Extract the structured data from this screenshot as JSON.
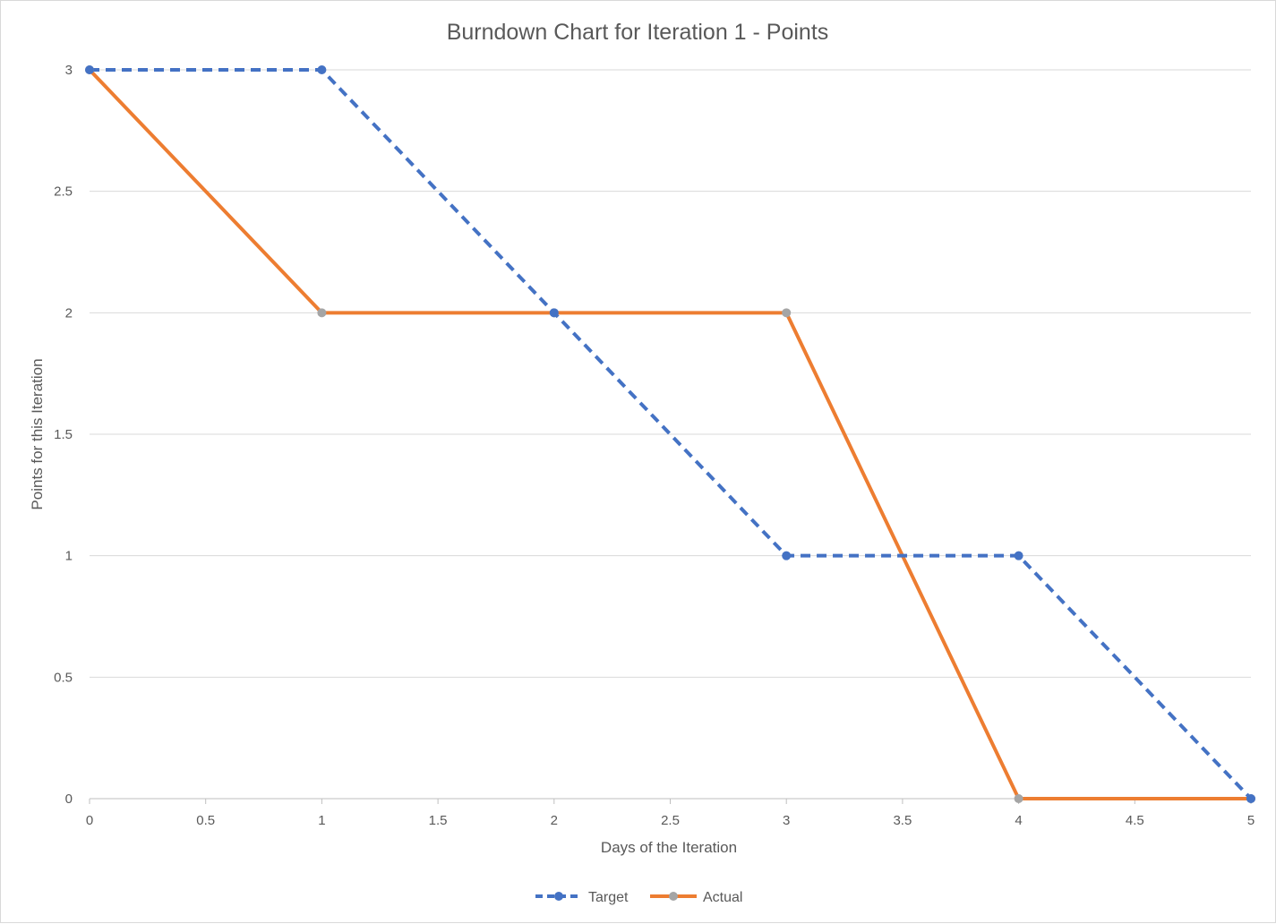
{
  "chart_data": {
    "type": "line",
    "title": "Burndown Chart for Iteration 1 - Points",
    "xlabel": "Days of the Iteration",
    "ylabel": "Points for this Iteration",
    "xlim": [
      0,
      5
    ],
    "ylim": [
      0,
      3
    ],
    "x_ticks": [
      "0",
      "0.5",
      "1",
      "1.5",
      "2",
      "2.5",
      "3",
      "3.5",
      "4",
      "4.5",
      "5"
    ],
    "y_ticks": [
      "0",
      "0.5",
      "1",
      "1.5",
      "2",
      "2.5",
      "3"
    ],
    "grid": true,
    "legend_position": "bottom",
    "series": [
      {
        "name": "Target",
        "color": "#4472c4",
        "marker_color": "#4472c4",
        "line_style": "dashed",
        "points": [
          [
            0,
            3
          ],
          [
            1,
            3
          ],
          [
            2,
            2
          ],
          [
            3,
            1
          ],
          [
            4,
            1
          ],
          [
            5,
            0
          ]
        ]
      },
      {
        "name": "Actual",
        "color": "#ed7d31",
        "marker_color": "#a5a5a5",
        "line_style": "solid",
        "points": [
          [
            0,
            3
          ],
          [
            1,
            2
          ],
          [
            2,
            2
          ],
          [
            3,
            2
          ],
          [
            4,
            0
          ],
          [
            5,
            0
          ]
        ]
      }
    ]
  }
}
